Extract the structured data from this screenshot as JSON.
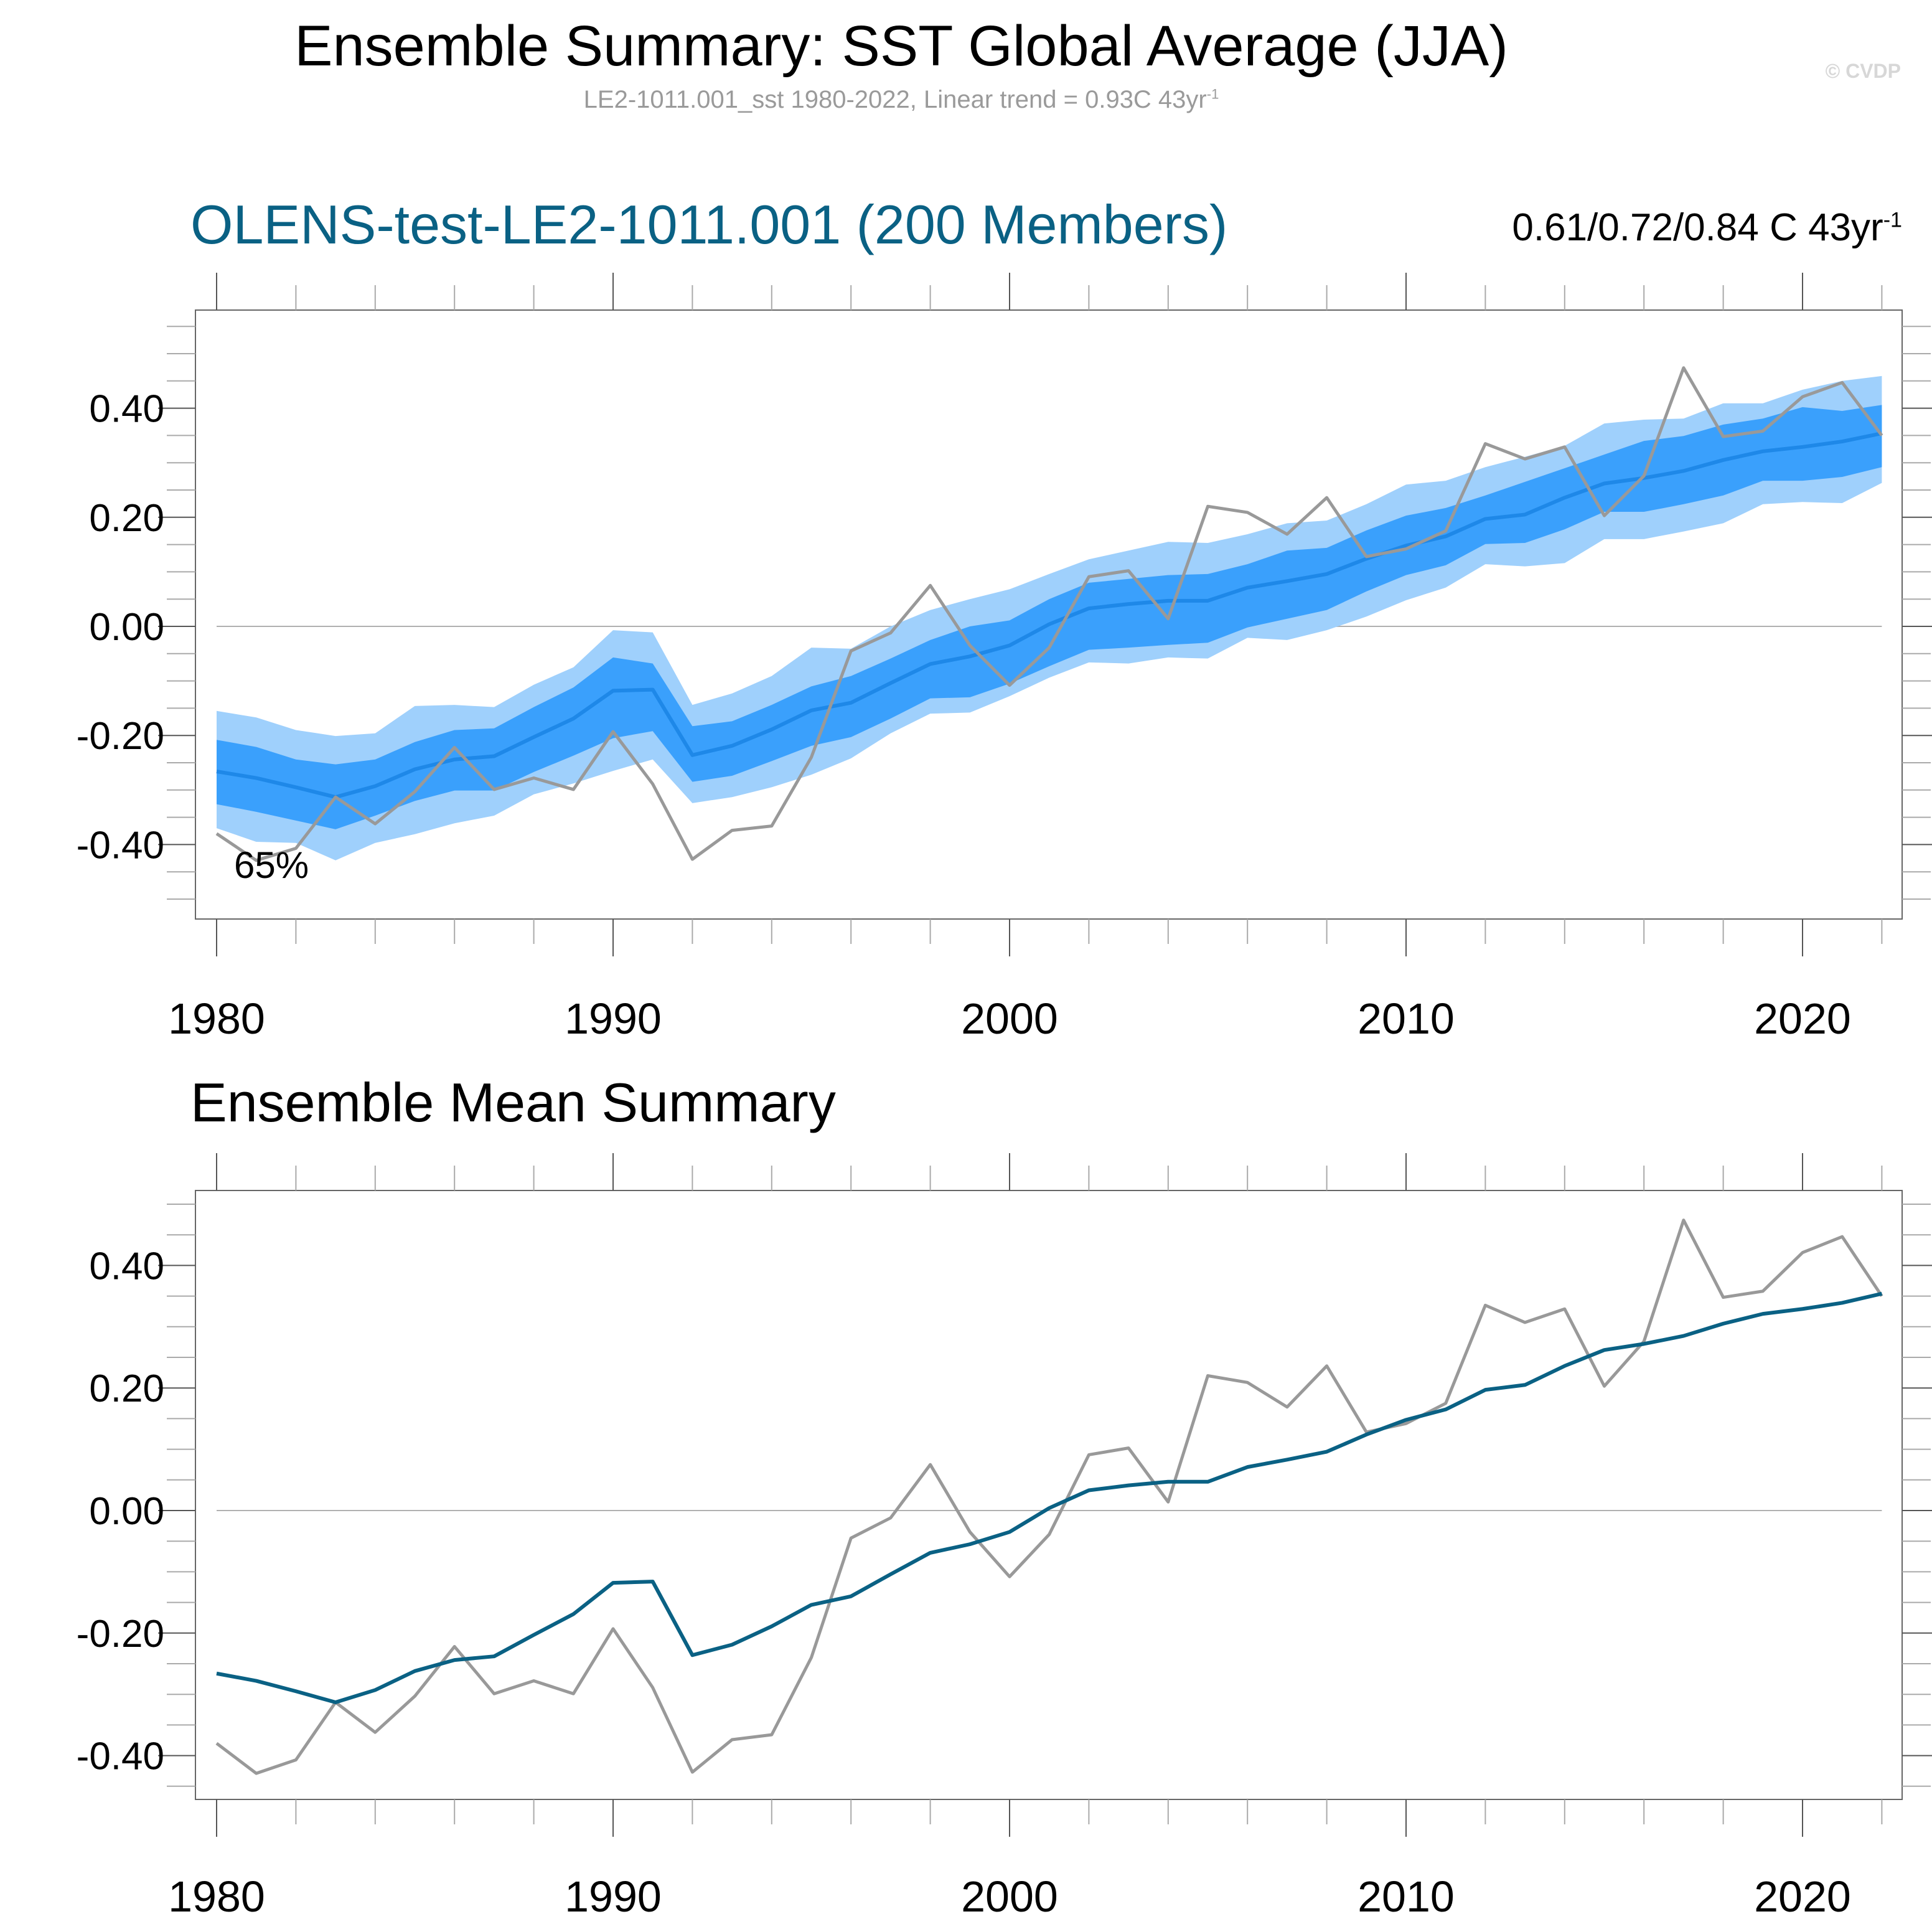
{
  "header": {
    "title": "Ensemble Summary: SST Global Average (JJA)",
    "subtitle_main": "LE2-1011.001_sst 1980-2022, Linear trend = 0.93C 43yr",
    "subtitle_sup": "-1",
    "watermark": "© CVDP"
  },
  "colors": {
    "outer_band": "#9fd0fc",
    "inner_band": "#3aa0fc",
    "spread_mean_line": "#1e88e8",
    "ensemble_mean_line": "#0a6184",
    "observations_line": "#999999",
    "title_accent": "#0a6184"
  },
  "chart_data": [
    {
      "type": "area",
      "title": "OLENS-test-LE2-1011.001 (200 Members)",
      "trend_label_main": "0.61/0.72/0.84 C 43yr",
      "trend_label_sup": "-1",
      "annotation": "65%",
      "xlabel": "",
      "ylabel": "",
      "xlim": [
        1979.5,
        2023.2
      ],
      "ylim": [
        -0.53,
        0.58
      ],
      "grid": false,
      "zero_line": true,
      "x_ticks": [
        1980,
        1990,
        2000,
        2010,
        2020
      ],
      "x_tick_labels": [
        "1980",
        "1990",
        "2000",
        "2010",
        "2020"
      ],
      "y_ticks": [
        0.4,
        0.2,
        0.0,
        -0.2,
        -0.4
      ],
      "y_tick_labels": [
        "0.40",
        "0.20",
        "0.00",
        "-0.20",
        "-0.40"
      ],
      "x": [
        1980,
        1981,
        1982,
        1983,
        1984,
        1985,
        1986,
        1987,
        1988,
        1989,
        1990,
        1991,
        1992,
        1993,
        1994,
        1995,
        1996,
        1997,
        1998,
        1999,
        2000,
        2001,
        2002,
        2003,
        2004,
        2005,
        2006,
        2007,
        2008,
        2009,
        2010,
        2011,
        2012,
        2013,
        2014,
        2015,
        2016,
        2017,
        2018,
        2019,
        2020,
        2021,
        2022
      ],
      "series": [
        {
          "name": "outer_upper",
          "values": [
            -0.155,
            -0.167,
            -0.19,
            -0.201,
            -0.196,
            -0.146,
            -0.144,
            -0.148,
            -0.107,
            -0.075,
            -0.007,
            -0.011,
            -0.144,
            -0.123,
            -0.091,
            -0.039,
            -0.041,
            0.0,
            0.03,
            0.05,
            0.068,
            0.096,
            0.123,
            0.139,
            0.155,
            0.153,
            0.169,
            0.189,
            0.194,
            0.224,
            0.26,
            0.267,
            0.292,
            0.311,
            0.331,
            0.372,
            0.379,
            0.381,
            0.409,
            0.409,
            0.434,
            0.45,
            0.459
          ]
        },
        {
          "name": "inner_upper",
          "values": [
            -0.208,
            -0.221,
            -0.244,
            -0.253,
            -0.244,
            -0.212,
            -0.19,
            -0.187,
            -0.148,
            -0.112,
            -0.057,
            -0.068,
            -0.183,
            -0.174,
            -0.144,
            -0.11,
            -0.091,
            -0.059,
            -0.025,
            0.0,
            0.011,
            0.05,
            0.08,
            0.087,
            0.094,
            0.096,
            0.114,
            0.139,
            0.144,
            0.176,
            0.203,
            0.217,
            0.24,
            0.265,
            0.29,
            0.315,
            0.34,
            0.349,
            0.37,
            0.381,
            0.402,
            0.395,
            0.406
          ]
        },
        {
          "name": "ensemble_mean",
          "values": [
            -0.266,
            -0.278,
            -0.295,
            -0.313,
            -0.293,
            -0.262,
            -0.244,
            -0.238,
            -0.203,
            -0.169,
            -0.118,
            -0.116,
            -0.236,
            -0.219,
            -0.189,
            -0.154,
            -0.14,
            -0.104,
            -0.069,
            -0.055,
            -0.035,
            0.004,
            0.033,
            0.041,
            0.047,
            0.047,
            0.071,
            0.083,
            0.096,
            0.124,
            0.148,
            0.165,
            0.197,
            0.205,
            0.236,
            0.262,
            0.272,
            0.285,
            0.305,
            0.321,
            0.329,
            0.339,
            0.354
          ]
        },
        {
          "name": "inner_lower",
          "values": [
            -0.326,
            -0.34,
            -0.356,
            -0.372,
            -0.347,
            -0.32,
            -0.301,
            -0.301,
            -0.267,
            -0.237,
            -0.205,
            -0.192,
            -0.285,
            -0.274,
            -0.247,
            -0.219,
            -0.203,
            -0.169,
            -0.132,
            -0.13,
            -0.105,
            -0.073,
            -0.043,
            -0.039,
            -0.034,
            -0.03,
            -0.002,
            0.014,
            0.03,
            0.064,
            0.094,
            0.112,
            0.151,
            0.153,
            0.178,
            0.21,
            0.21,
            0.224,
            0.24,
            0.267,
            0.267,
            0.274,
            0.292
          ]
        },
        {
          "name": "outer_lower",
          "values": [
            -0.37,
            -0.395,
            -0.397,
            -0.429,
            -0.397,
            -0.381,
            -0.361,
            -0.347,
            -0.308,
            -0.288,
            -0.265,
            -0.244,
            -0.324,
            -0.313,
            -0.295,
            -0.272,
            -0.242,
            -0.196,
            -0.16,
            -0.158,
            -0.128,
            -0.094,
            -0.066,
            -0.068,
            -0.057,
            -0.059,
            -0.021,
            -0.025,
            -0.007,
            0.018,
            0.048,
            0.071,
            0.114,
            0.11,
            0.116,
            0.16,
            0.16,
            0.174,
            0.189,
            0.224,
            0.228,
            0.226,
            0.263
          ]
        },
        {
          "name": "observations",
          "values": [
            -0.38,
            -0.429,
            -0.407,
            -0.313,
            -0.362,
            -0.303,
            -0.222,
            -0.299,
            -0.278,
            -0.299,
            -0.193,
            -0.289,
            -0.427,
            -0.374,
            -0.366,
            -0.24,
            -0.045,
            -0.012,
            0.075,
            -0.035,
            -0.108,
            -0.039,
            0.091,
            0.102,
            0.014,
            0.22,
            0.209,
            0.169,
            0.236,
            0.128,
            0.142,
            0.175,
            0.335,
            0.307,
            0.329,
            0.203,
            0.276,
            0.474,
            0.348,
            0.358,
            0.421,
            0.447,
            0.35
          ]
        }
      ]
    },
    {
      "type": "line",
      "title": "Ensemble Mean Summary",
      "xlabel": "",
      "ylabel": "",
      "xlim": [
        1979.5,
        2023.2
      ],
      "ylim": [
        -0.47,
        0.52
      ],
      "grid": false,
      "zero_line": true,
      "x_ticks": [
        1980,
        1990,
        2000,
        2010,
        2020
      ],
      "x_tick_labels": [
        "1980",
        "1990",
        "2000",
        "2010",
        "2020"
      ],
      "y_ticks": [
        0.4,
        0.2,
        0.0,
        -0.2,
        -0.4
      ],
      "y_tick_labels": [
        "0.40",
        "0.20",
        "0.00",
        "-0.20",
        "-0.40"
      ],
      "x": [
        1980,
        1981,
        1982,
        1983,
        1984,
        1985,
        1986,
        1987,
        1988,
        1989,
        1990,
        1991,
        1992,
        1993,
        1994,
        1995,
        1996,
        1997,
        1998,
        1999,
        2000,
        2001,
        2002,
        2003,
        2004,
        2005,
        2006,
        2007,
        2008,
        2009,
        2010,
        2011,
        2012,
        2013,
        2014,
        2015,
        2016,
        2017,
        2018,
        2019,
        2020,
        2021,
        2022
      ],
      "series": [
        {
          "name": "observations",
          "values": [
            -0.38,
            -0.429,
            -0.407,
            -0.313,
            -0.362,
            -0.303,
            -0.222,
            -0.299,
            -0.278,
            -0.299,
            -0.193,
            -0.289,
            -0.427,
            -0.374,
            -0.366,
            -0.24,
            -0.045,
            -0.012,
            0.075,
            -0.035,
            -0.108,
            -0.039,
            0.091,
            0.102,
            0.014,
            0.22,
            0.209,
            0.169,
            0.236,
            0.128,
            0.142,
            0.175,
            0.335,
            0.307,
            0.329,
            0.203,
            0.276,
            0.474,
            0.348,
            0.358,
            0.421,
            0.447,
            0.35
          ]
        },
        {
          "name": "ensemble_mean",
          "values": [
            -0.266,
            -0.278,
            -0.295,
            -0.313,
            -0.293,
            -0.262,
            -0.244,
            -0.238,
            -0.203,
            -0.169,
            -0.118,
            -0.116,
            -0.236,
            -0.219,
            -0.189,
            -0.154,
            -0.14,
            -0.104,
            -0.069,
            -0.055,
            -0.035,
            0.004,
            0.033,
            0.041,
            0.047,
            0.047,
            0.071,
            0.083,
            0.096,
            0.124,
            0.148,
            0.165,
            0.197,
            0.205,
            0.236,
            0.262,
            0.272,
            0.285,
            0.305,
            0.321,
            0.329,
            0.339,
            0.354
          ]
        }
      ]
    }
  ]
}
